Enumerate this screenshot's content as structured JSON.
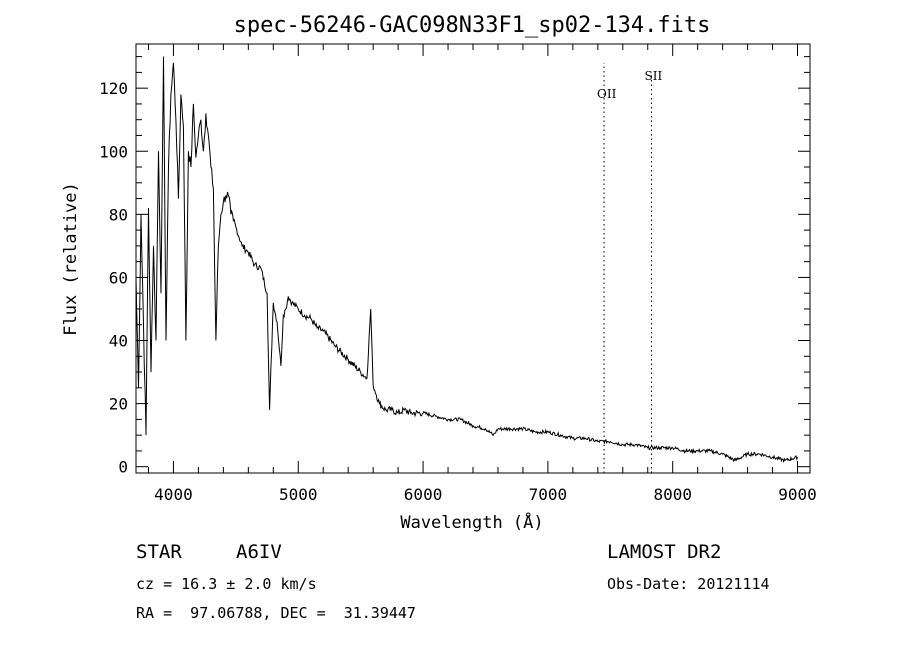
{
  "chart_data": {
    "type": "line",
    "title": "spec-56246-GAC098N33F1_sp02-134.fits",
    "xlabel": "Wavelength (Å)",
    "ylabel": "Flux (relative)",
    "xlim": [
      3700,
      9100
    ],
    "ylim": [
      -2,
      134
    ],
    "xticks": [
      4000,
      5000,
      6000,
      7000,
      8000,
      9000
    ],
    "yticks": [
      0,
      20,
      40,
      60,
      80,
      100,
      120
    ],
    "grid": false,
    "series": [
      {
        "x": [
          3700,
          3720,
          3740,
          3760,
          3780,
          3800,
          3820,
          3840,
          3860,
          3880,
          3900,
          3920,
          3940,
          3960,
          3980,
          4000,
          4020,
          4040,
          4060,
          4080,
          4100,
          4120,
          4140,
          4160,
          4180,
          4200,
          4220,
          4240,
          4260,
          4280,
          4300,
          4320,
          4340,
          4360,
          4380,
          4400,
          4420,
          4440,
          4460,
          4480,
          4500,
          4550,
          4600,
          4650,
          4700,
          4750,
          4770,
          4800,
          4830,
          4861,
          4880,
          4900,
          4920,
          4950,
          5000,
          5050,
          5100,
          5150,
          5200,
          5300,
          5400,
          5500,
          5550,
          5580,
          5600,
          5650,
          5700,
          5750,
          5800,
          5850,
          5900,
          6000,
          6100,
          6200,
          6300,
          6400,
          6500,
          6563,
          6600,
          6700,
          6800,
          6900,
          7000,
          7100,
          7200,
          7300,
          7400,
          7500,
          7600,
          7700,
          7800,
          7900,
          8000,
          8100,
          8200,
          8300,
          8400,
          8500,
          8600,
          8700,
          8800,
          8900,
          9000
        ],
        "y": [
          60,
          25,
          80,
          45,
          10,
          82,
          30,
          70,
          40,
          100,
          55,
          130,
          40,
          95,
          118,
          128,
          110,
          85,
          118,
          108,
          40,
          100,
          95,
          115,
          98,
          105,
          110,
          100,
          112,
          105,
          95,
          88,
          40,
          70,
          80,
          84,
          86,
          86,
          80,
          78,
          76,
          70,
          68,
          64,
          63,
          55,
          18,
          52,
          46,
          32,
          48,
          50,
          54,
          52,
          50,
          48,
          47,
          44,
          43,
          38,
          34,
          30,
          28,
          50,
          26,
          20,
          18,
          18,
          17,
          18,
          17,
          17,
          16,
          15,
          15,
          13,
          12,
          10,
          12,
          12,
          12,
          11,
          11,
          10,
          9,
          9,
          8,
          8,
          7,
          7,
          6,
          6,
          6,
          5,
          5,
          5,
          4,
          2,
          4,
          4,
          3,
          2,
          3
        ]
      }
    ],
    "annotations": [
      {
        "label": "OII",
        "x": 7450
      },
      {
        "label": "SII",
        "x": 7830
      }
    ]
  },
  "footer": {
    "object_type": "STAR",
    "subclass": "A6IV",
    "survey": "LAMOST DR2",
    "cz": "cz = 16.3 ± 2.0 km/s",
    "obs_date": "Obs-Date: 20121114",
    "coords": "RA =  97.06788, DEC =  31.39447"
  }
}
